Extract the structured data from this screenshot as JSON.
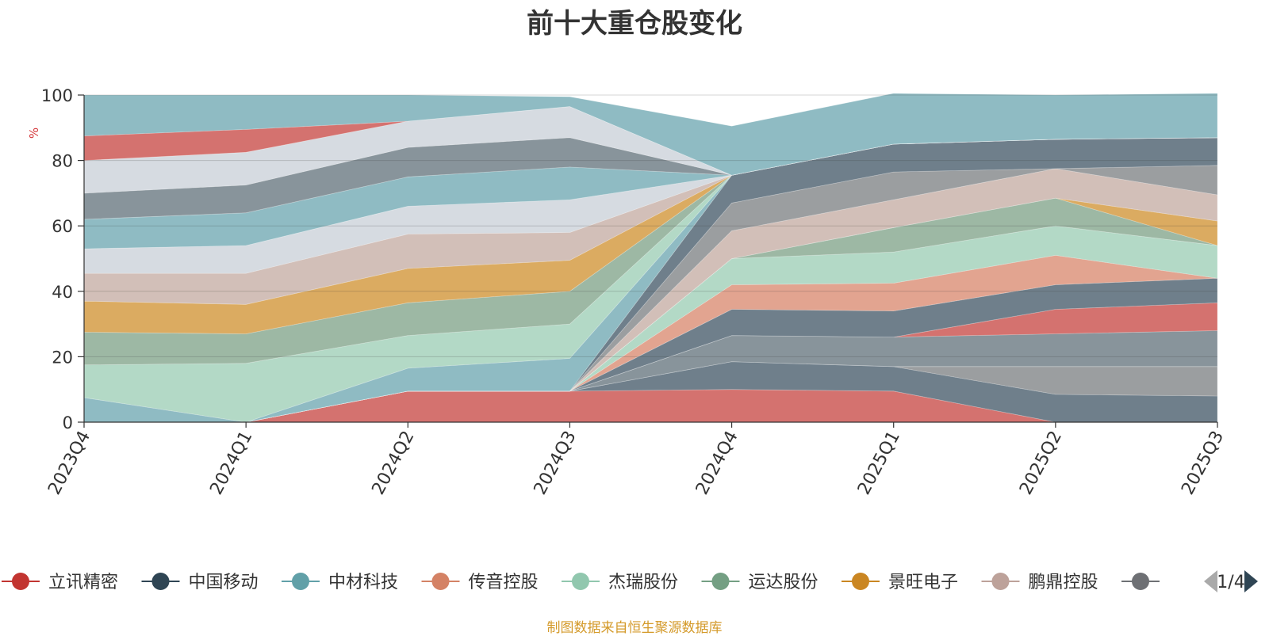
{
  "chart_data": {
    "type": "area",
    "stacked": true,
    "title": "前十大重仓股变化",
    "ylabel": "%",
    "ylim": [
      0,
      100
    ],
    "yticks": [
      0,
      20,
      40,
      60,
      80,
      100
    ],
    "categories": [
      "2023Q4",
      "2024Q1",
      "2024Q2",
      "2024Q3",
      "2024Q4",
      "2025Q1",
      "2025Q2",
      "2025Q3"
    ],
    "grid": true,
    "bands": [
      {
        "color": "#d4726f",
        "values": [
          0,
          0,
          9.5,
          9.5,
          10,
          9.5,
          0,
          0
        ]
      },
      {
        "color": "#6f7f8b",
        "values": [
          0,
          0,
          0,
          0,
          8.5,
          7.5,
          8.5,
          8
        ]
      },
      {
        "color": "#9b9ea0",
        "values": [
          0,
          0,
          0,
          0,
          0,
          0,
          8.5,
          9
        ]
      },
      {
        "color": "#88949b",
        "values": [
          0,
          0,
          0,
          0,
          8,
          9,
          10,
          11
        ]
      },
      {
        "color": "#d4726f",
        "values": [
          0,
          0,
          0,
          0,
          0,
          0,
          7.5,
          8.5
        ]
      },
      {
        "color": "#6f7f8b",
        "values": [
          0,
          0,
          0,
          0,
          8,
          8,
          7.5,
          7.5
        ]
      },
      {
        "color": "#e2a490",
        "values": [
          0,
          0,
          0,
          0,
          7.5,
          8.5,
          9,
          0
        ]
      },
      {
        "color": "#b3d9c6",
        "values": [
          0,
          0,
          0,
          0,
          8,
          9.5,
          9,
          10
        ]
      },
      {
        "color": "#9db8a4",
        "values": [
          0,
          0,
          0,
          0,
          0,
          7.5,
          8.5,
          0
        ]
      },
      {
        "color": "#dbab61",
        "values": [
          0,
          0,
          0,
          0,
          0,
          0,
          0,
          7.5
        ]
      },
      {
        "color": "#d2bfb8",
        "values": [
          0,
          0,
          0,
          0,
          8.5,
          8.5,
          9,
          8
        ]
      },
      {
        "color": "#9b9ea0",
        "values": [
          0,
          0,
          0,
          0,
          8.5,
          8.5,
          0,
          9
        ]
      },
      {
        "color": "#6f7f8b",
        "values": [
          0,
          0,
          0,
          0,
          8.5,
          8.5,
          9,
          8.5
        ]
      },
      {
        "color": "#8fbbc3",
        "values": [
          7.5,
          0,
          7,
          10,
          0,
          0,
          0,
          0
        ]
      },
      {
        "color": "#b3d9c6",
        "values": [
          10,
          18,
          10,
          10.5,
          0,
          0,
          0,
          0
        ]
      },
      {
        "color": "#9db8a4",
        "values": [
          10,
          9,
          10,
          10,
          0,
          0,
          0,
          0
        ]
      },
      {
        "color": "#dbab61",
        "values": [
          9.5,
          9,
          10.5,
          9.5,
          0,
          0,
          0,
          0
        ]
      },
      {
        "color": "#d2bfb8",
        "values": [
          8.5,
          9.5,
          10.5,
          8.5,
          0,
          0,
          0,
          0
        ]
      },
      {
        "color": "#d6dbe1",
        "values": [
          7.5,
          8.5,
          8.5,
          10,
          0,
          0,
          0,
          0
        ]
      },
      {
        "color": "#8fbbc3",
        "values": [
          9,
          10,
          9,
          10,
          0,
          0,
          0,
          0
        ]
      },
      {
        "color": "#88949b",
        "values": [
          8,
          8.5,
          9,
          9,
          0,
          0,
          0,
          0
        ]
      },
      {
        "color": "#d6dbe1",
        "values": [
          10,
          10,
          8,
          9.5,
          0,
          0,
          0,
          0
        ]
      },
      {
        "color": "#d4726f",
        "values": [
          7.5,
          7,
          0,
          0,
          0,
          0,
          0,
          0
        ]
      },
      {
        "color": "#8fbbc3",
        "values": [
          12.5,
          10.5,
          8,
          3,
          15,
          15.5,
          13.5,
          13.5
        ]
      }
    ],
    "legend": {
      "placement": "bottom",
      "page": "1/4",
      "items": [
        {
          "name": "立讯精密",
          "color": "#c23531"
        },
        {
          "name": "中国移动",
          "color": "#2f4554"
        },
        {
          "name": "中材科技",
          "color": "#61a0a8"
        },
        {
          "name": "传音控股",
          "color": "#d48265"
        },
        {
          "name": "杰瑞股份",
          "color": "#91c7ae"
        },
        {
          "name": "运达股份",
          "color": "#749f83"
        },
        {
          "name": "景旺电子",
          "color": "#ca8622"
        },
        {
          "name": "鹏鼎控股",
          "color": "#bda29a"
        },
        {
          "name": "",
          "color": "#6e7074"
        }
      ]
    }
  },
  "footer": {
    "source": "制图数据来自恒生聚源数据库"
  }
}
